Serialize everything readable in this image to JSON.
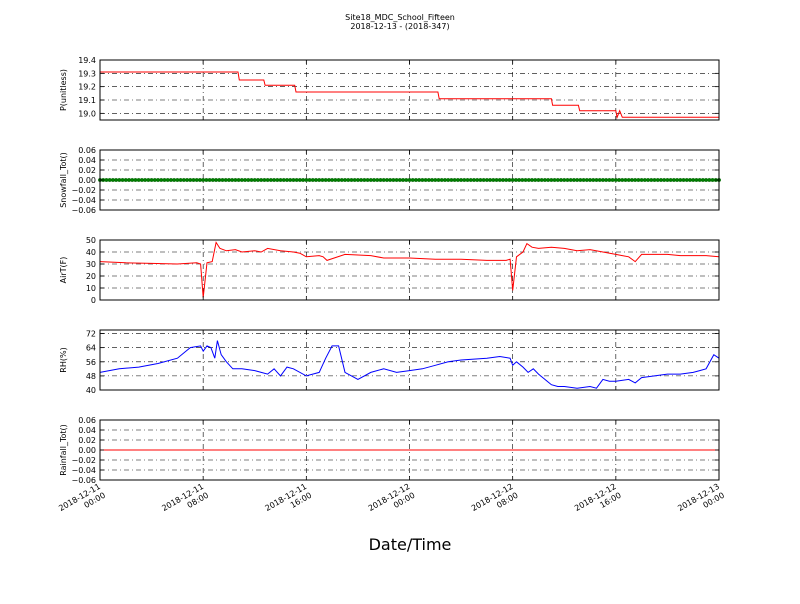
{
  "figure": {
    "title": "Site18_MDC_School_Fifteen",
    "subtitle": "2018-12-13 - (2018-347)",
    "xlabel": "Date/Time"
  },
  "x_ticks": [
    {
      "t": 0,
      "line1": "2018-12-11",
      "line2": "00:00"
    },
    {
      "t": 8,
      "line1": "2018-12-11",
      "line2": "08:00"
    },
    {
      "t": 16,
      "line1": "2018-12-11",
      "line2": "16:00"
    },
    {
      "t": 24,
      "line1": "2018-12-12",
      "line2": "00:00"
    },
    {
      "t": 32,
      "line1": "2018-12-12",
      "line2": "08:00"
    },
    {
      "t": 40,
      "line1": "2018-12-12",
      "line2": "16:00"
    },
    {
      "t": 48,
      "line1": "2018-12-13",
      "line2": "00:00"
    }
  ],
  "x_range_hours": [
    0,
    48
  ],
  "chart_data": [
    {
      "type": "line",
      "name": "P",
      "ylabel": "P(unitless)",
      "ylim": [
        18.95,
        19.4
      ],
      "yticks": [
        "19.0",
        "19.1",
        "19.2",
        "19.3",
        "19.4"
      ],
      "ytick_values": [
        19.0,
        19.1,
        19.2,
        19.3,
        19.4
      ],
      "color": "#ff0000",
      "grid": true,
      "x_hours": [
        0,
        10.7,
        10.8,
        12.7,
        12.8,
        15.1,
        15.2,
        26.2,
        26.3,
        35,
        35.1,
        37.1,
        37.2,
        40,
        40.1,
        40.3,
        40.5,
        40.8,
        48
      ],
      "y": [
        19.31,
        19.31,
        19.25,
        19.25,
        19.21,
        19.21,
        19.16,
        19.16,
        19.11,
        19.11,
        19.06,
        19.06,
        19.02,
        19.02,
        18.97,
        19.02,
        18.97,
        18.97,
        18.97
      ]
    },
    {
      "type": "scatter",
      "name": "Snowfall",
      "ylabel": "Snowfall_Tot()",
      "ylim": [
        -0.06,
        0.06
      ],
      "yticks": [
        "−0.06",
        "−0.04",
        "−0.02",
        "0.00",
        "0.02",
        "0.04",
        "0.06"
      ],
      "ytick_values": [
        -0.06,
        -0.04,
        -0.02,
        0.0,
        0.02,
        0.04,
        0.06
      ],
      "color": "#008000",
      "grid": true,
      "constant_value": 0.0
    },
    {
      "type": "line",
      "name": "AirT",
      "ylabel": "AirT(F)",
      "ylim": [
        0,
        50
      ],
      "yticks": [
        "0",
        "10",
        "20",
        "30",
        "40",
        "50"
      ],
      "ytick_values": [
        0,
        10,
        20,
        30,
        40,
        50
      ],
      "color": "#ff0000",
      "grid": true,
      "x_hours": [
        0,
        2,
        4,
        6,
        7.5,
        7.8,
        8.0,
        8.3,
        8.7,
        9.0,
        9.3,
        9.8,
        10.5,
        11.0,
        12.0,
        12.5,
        13.0,
        14.0,
        15.0,
        15.5,
        16.0,
        17.0,
        17.3,
        17.6,
        19.0,
        21.0,
        22.0,
        24.0,
        26.0,
        28.0,
        30.0,
        31.5,
        31.8,
        32.0,
        32.3,
        32.8,
        33.1,
        33.5,
        34.0,
        35.0,
        36.0,
        37.0,
        38.0,
        39.0,
        40.0,
        40.5,
        41.0,
        41.5,
        42.0,
        43.0,
        44.0,
        45.0,
        46.0,
        47.0,
        48.0
      ],
      "y": [
        32,
        31,
        30.5,
        30,
        31,
        30,
        2,
        31,
        32,
        48,
        43,
        41,
        42,
        40,
        41,
        40,
        43,
        41,
        40,
        39,
        36,
        37,
        36,
        33,
        38,
        37,
        35,
        35,
        34,
        34,
        33,
        33,
        34,
        8,
        36,
        40,
        47,
        44,
        43,
        44,
        43,
        41,
        42,
        40,
        38,
        37,
        36,
        32,
        38,
        38,
        38,
        37,
        37,
        37,
        36
      ]
    },
    {
      "type": "line",
      "name": "RH",
      "ylabel": "RH(%)",
      "ylim": [
        40,
        74
      ],
      "yticks": [
        "40",
        "48",
        "56",
        "64",
        "72"
      ],
      "ytick_values": [
        40,
        48,
        56,
        64,
        72
      ],
      "color": "#0000ff",
      "grid": true,
      "x_hours": [
        0,
        1.5,
        3,
        4.5,
        6,
        7,
        7.8,
        8.0,
        8.3,
        8.6,
        8.9,
        9.1,
        9.4,
        9.8,
        10.3,
        11,
        12,
        12.5,
        13,
        13.5,
        14,
        14.5,
        15,
        16,
        17,
        17.5,
        18,
        18.5,
        19,
        19.5,
        20,
        21,
        22,
        23,
        24,
        25,
        26,
        27,
        28,
        30,
        31,
        31.8,
        32.0,
        32.3,
        32.8,
        33.2,
        33.6,
        34,
        34.5,
        35,
        35.5,
        36,
        37,
        38,
        38.5,
        39,
        39.5,
        40,
        41,
        41.5,
        42,
        43,
        44,
        45,
        46,
        46.5,
        47,
        47.6,
        48
      ],
      "y": [
        50,
        52,
        53,
        55,
        58,
        64,
        65,
        62,
        65,
        64,
        58,
        68,
        60,
        56,
        52,
        52,
        51,
        50,
        49,
        52,
        48,
        53,
        52,
        48,
        50,
        58,
        65,
        65,
        50,
        48,
        46,
        50,
        52,
        50,
        51,
        52,
        54,
        56,
        57,
        58,
        59,
        58,
        54,
        56,
        53,
        50,
        52,
        49,
        46,
        43,
        42,
        42,
        41,
        42,
        41,
        46,
        45,
        45,
        46,
        44,
        47,
        48,
        49,
        49,
        50,
        51,
        52,
        60,
        58
      ]
    },
    {
      "type": "line",
      "name": "Rainfall",
      "ylabel": "Rainfall_Tot()",
      "ylim": [
        -0.06,
        0.06
      ],
      "yticks": [
        "−0.06",
        "−0.04",
        "−0.02",
        "0.00",
        "0.02",
        "0.04",
        "0.06"
      ],
      "ytick_values": [
        -0.06,
        -0.04,
        -0.02,
        0.0,
        0.02,
        0.04,
        0.06
      ],
      "color": "#ff0000",
      "grid": true,
      "constant_value": 0.0
    }
  ]
}
